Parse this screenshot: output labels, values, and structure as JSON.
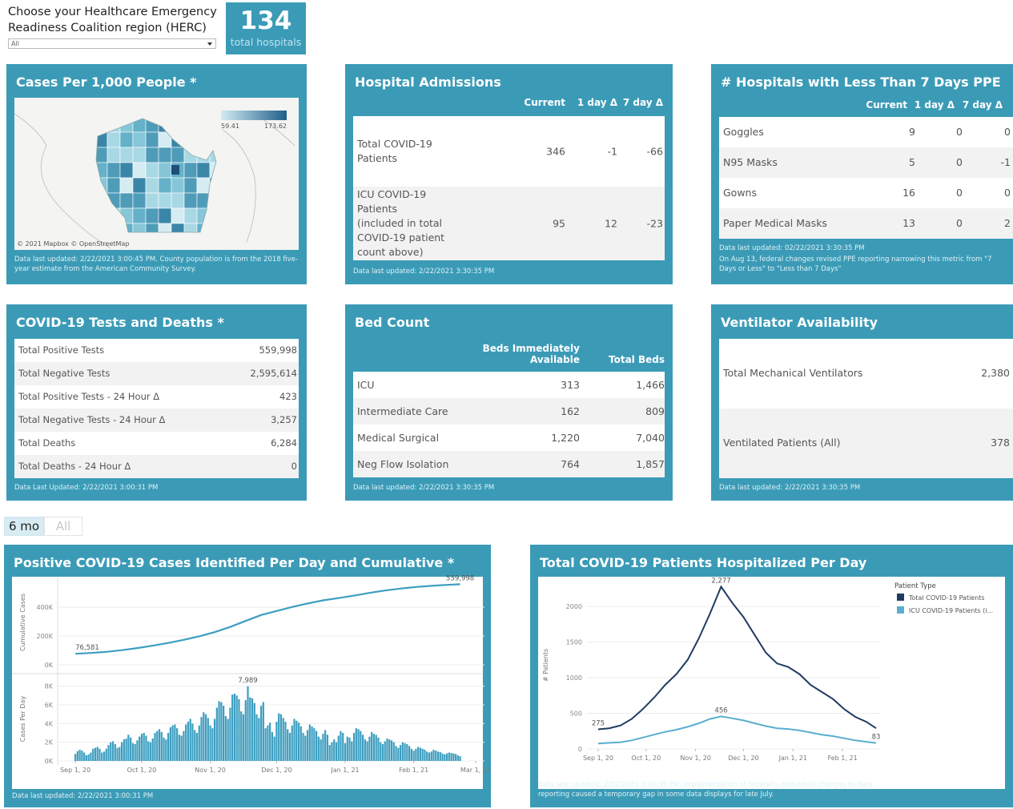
{
  "header": {
    "prompt": "Choose your Healthcare Emergency Readiness Coalition region (HERC)",
    "dropdown": "All",
    "hospital_count": "134",
    "hospital_count_label": "total hospitals"
  },
  "cases_map": {
    "title": "Cases Per 1,000 People *",
    "legend_min": "59.41",
    "legend_max": "173.62",
    "attribution": "© 2021 Mapbox © OpenStreetMap",
    "footnote": "Data last updated: 2/22/2021 3:00:45 PM. County population is from the 2018 five-year estimate from the American Community Survey."
  },
  "admissions": {
    "title": "Hospital Admissions",
    "columns": [
      "Current",
      "1 day Δ",
      "7 day Δ"
    ],
    "rows": [
      {
        "label": "Total COVID-19 Patients",
        "values": [
          "346",
          "-1",
          "-66"
        ]
      },
      {
        "label": "ICU COVID-19 Patients (included in total COVID-19 patient count above)",
        "values": [
          "95",
          "12",
          "-23"
        ]
      }
    ],
    "footnote": "Data last updated: 2/22/2021 3:30:35 PM"
  },
  "ppe": {
    "title": "# Hospitals with Less Than 7 Days PPE",
    "columns": [
      "Current",
      "1 day Δ",
      "7 day Δ"
    ],
    "rows": [
      {
        "label": "Goggles",
        "values": [
          "9",
          "0",
          "0"
        ]
      },
      {
        "label": "N95 Masks",
        "values": [
          "5",
          "0",
          "-1"
        ]
      },
      {
        "label": "Gowns",
        "values": [
          "16",
          "0",
          "0"
        ]
      },
      {
        "label": "Paper Medical Masks",
        "values": [
          "13",
          "0",
          "2"
        ]
      }
    ],
    "footnote": "Data last updated: 02/22/2021 3:30:35 PM",
    "note": "On Aug 13, federal changes revised PPE reporting narrowing this metric from \"7 Days or Less\" to \"Less than 7 Days\""
  },
  "tests": {
    "title": "COVID-19 Tests and Deaths *",
    "rows": [
      {
        "label": "Total Positive Tests",
        "value": "559,998"
      },
      {
        "label": "Total Negative Tests",
        "value": "2,595,614"
      },
      {
        "label": "Total Positive Tests - 24 Hour Δ",
        "value": "423"
      },
      {
        "label": "Total Negative Tests - 24 Hour Δ",
        "value": "3,257"
      },
      {
        "label": "Total Deaths",
        "value": "6,284"
      },
      {
        "label": "Total Deaths - 24 Hour Δ",
        "value": "0"
      }
    ],
    "footnote": "Data Last Updated: 2/22/2021 3:00:31 PM"
  },
  "beds": {
    "title": "Bed Count",
    "columns": [
      "Beds Immediately Available",
      "Total Beds"
    ],
    "rows": [
      {
        "label": "ICU",
        "values": [
          "313",
          "1,466"
        ]
      },
      {
        "label": "Intermediate Care",
        "values": [
          "162",
          "809"
        ]
      },
      {
        "label": "Medical Surgical",
        "values": [
          "1,220",
          "7,040"
        ]
      },
      {
        "label": "Neg Flow Isolation",
        "values": [
          "764",
          "1,857"
        ]
      }
    ],
    "footnote": "Data last updated: 2/22/2021 3:30:35 PM"
  },
  "ventilators": {
    "title": "Ventilator Availability",
    "rows": [
      {
        "label": "Total Mechanical Ventilators",
        "value": "2,380"
      },
      {
        "label": "Ventilated Patients (All)",
        "value": "378"
      }
    ],
    "footnote": "Data last updated: 2/22/2021 3:30:35 PM"
  },
  "range_buttons": [
    "6 mo",
    "All"
  ],
  "chart_data": [
    {
      "type": "line",
      "title": "Positive COVID-19 Cases Identified Per Day and Cumulative *",
      "ylabel": "Cumulative Cases",
      "color": "#3d9ec0",
      "x": [
        "2020-09-01",
        "2020-09-08",
        "2020-09-15",
        "2020-09-22",
        "2020-09-29",
        "2020-10-06",
        "2020-10-13",
        "2020-10-20",
        "2020-10-27",
        "2020-11-03",
        "2020-11-10",
        "2020-11-17",
        "2020-11-24",
        "2020-12-01",
        "2020-12-08",
        "2020-12-15",
        "2020-12-22",
        "2020-12-29",
        "2021-01-05",
        "2021-01-12",
        "2021-01-19",
        "2021-01-26",
        "2021-02-02",
        "2021-02-09",
        "2021-02-16",
        "2021-02-22"
      ],
      "values": [
        76581,
        82600,
        90400,
        101600,
        116400,
        133000,
        151700,
        173800,
        198400,
        227300,
        263300,
        304800,
        346200,
        374000,
        401900,
        426600,
        447800,
        463900,
        480900,
        500100,
        516800,
        530000,
        540800,
        548900,
        555300,
        559998
      ],
      "xlim": [
        "2020-08-24",
        "2021-03-05"
      ],
      "ylim": [
        0,
        590000
      ],
      "yticks": [
        {
          "value": 0,
          "label": "0K"
        },
        {
          "value": 200000,
          "label": "200K"
        },
        {
          "value": 400000,
          "label": "400K"
        }
      ],
      "annotations": [
        {
          "x": "2020-09-01",
          "y": 76581,
          "label": "76,581"
        },
        {
          "x": "2021-02-22",
          "y": 559998,
          "label": "559,998"
        }
      ]
    },
    {
      "type": "bar",
      "ylabel": "Cases Per Day",
      "color": "#3d9ec0",
      "x": [
        "2020-09-01",
        "2020-09-02",
        "2020-09-03",
        "2020-09-04",
        "2020-09-05",
        "2020-09-06",
        "2020-09-07",
        "2020-09-08",
        "2020-09-09",
        "2020-09-10",
        "2020-09-11",
        "2020-09-12",
        "2020-09-13",
        "2020-09-14",
        "2020-09-15",
        "2020-09-16",
        "2020-09-17",
        "2020-09-18",
        "2020-09-19",
        "2020-09-20",
        "2020-09-21",
        "2020-09-22",
        "2020-09-23",
        "2020-09-24",
        "2020-09-25",
        "2020-09-26",
        "2020-09-27",
        "2020-09-28",
        "2020-09-29",
        "2020-09-30",
        "2020-10-01",
        "2020-10-02",
        "2020-10-03",
        "2020-10-04",
        "2020-10-05",
        "2020-10-06",
        "2020-10-07",
        "2020-10-08",
        "2020-10-09",
        "2020-10-10",
        "2020-10-11",
        "2020-10-12",
        "2020-10-13",
        "2020-10-14",
        "2020-10-15",
        "2020-10-16",
        "2020-10-17",
        "2020-10-18",
        "2020-10-19",
        "2020-10-20",
        "2020-10-21",
        "2020-10-22",
        "2020-10-23",
        "2020-10-24",
        "2020-10-25",
        "2020-10-26",
        "2020-10-27",
        "2020-10-28",
        "2020-10-29",
        "2020-10-30",
        "2020-10-31",
        "2020-11-01",
        "2020-11-02",
        "2020-11-03",
        "2020-11-04",
        "2020-11-05",
        "2020-11-06",
        "2020-11-07",
        "2020-11-08",
        "2020-11-09",
        "2020-11-10",
        "2020-11-11",
        "2020-11-12",
        "2020-11-13",
        "2020-11-14",
        "2020-11-15",
        "2020-11-16",
        "2020-11-17",
        "2020-11-18",
        "2020-11-19",
        "2020-11-20",
        "2020-11-21",
        "2020-11-22",
        "2020-11-23",
        "2020-11-24",
        "2020-11-25",
        "2020-11-26",
        "2020-11-27",
        "2020-11-28",
        "2020-11-29",
        "2020-11-30",
        "2020-12-01",
        "2020-12-02",
        "2020-12-03",
        "2020-12-04",
        "2020-12-05",
        "2020-12-06",
        "2020-12-07",
        "2020-12-08",
        "2020-12-09",
        "2020-12-10",
        "2020-12-11",
        "2020-12-12",
        "2020-12-13",
        "2020-12-14",
        "2020-12-15",
        "2020-12-16",
        "2020-12-17",
        "2020-12-18",
        "2020-12-19",
        "2020-12-20",
        "2020-12-21",
        "2020-12-22",
        "2020-12-23",
        "2020-12-24",
        "2020-12-25",
        "2020-12-26",
        "2020-12-27",
        "2020-12-28",
        "2020-12-29",
        "2020-12-30",
        "2020-12-31",
        "2021-01-01",
        "2021-01-02",
        "2021-01-03",
        "2021-01-04",
        "2021-01-05",
        "2021-01-06",
        "2021-01-07",
        "2021-01-08",
        "2021-01-09",
        "2021-01-10",
        "2021-01-11",
        "2021-01-12",
        "2021-01-13",
        "2021-01-14",
        "2021-01-15",
        "2021-01-16",
        "2021-01-17",
        "2021-01-18",
        "2021-01-19",
        "2021-01-20",
        "2021-01-21",
        "2021-01-22",
        "2021-01-23",
        "2021-01-24",
        "2021-01-25",
        "2021-01-26",
        "2021-01-27",
        "2021-01-28",
        "2021-01-29",
        "2021-01-30",
        "2021-01-31",
        "2021-02-01",
        "2021-02-02",
        "2021-02-03",
        "2021-02-04",
        "2021-02-05",
        "2021-02-06",
        "2021-02-07",
        "2021-02-08",
        "2021-02-09",
        "2021-02-10",
        "2021-02-11",
        "2021-02-12",
        "2021-02-13",
        "2021-02-14",
        "2021-02-15",
        "2021-02-16",
        "2021-02-17",
        "2021-02-18",
        "2021-02-19",
        "2021-02-20",
        "2021-02-21",
        "2021-02-22"
      ],
      "values": [
        750,
        1050,
        1200,
        1100,
        900,
        600,
        700,
        900,
        1300,
        1400,
        1500,
        1300,
        900,
        1000,
        1300,
        1700,
        2000,
        2100,
        1800,
        1400,
        1500,
        2000,
        2300,
        2400,
        2800,
        2500,
        1900,
        1800,
        2200,
        2600,
        2900,
        3000,
        2700,
        2100,
        2000,
        2400,
        3000,
        3200,
        3400,
        3100,
        2500,
        2300,
        3000,
        3600,
        3800,
        3900,
        3500,
        2800,
        2700,
        3200,
        3900,
        4200,
        4500,
        4000,
        3300,
        3000,
        3800,
        4700,
        5200,
        5000,
        4600,
        3800,
        3500,
        4500,
        5700,
        6400,
        6300,
        5900,
        4800,
        4500,
        5700,
        7100,
        7200,
        7000,
        6600,
        5300,
        5000,
        6500,
        7989,
        6800,
        6700,
        6200,
        5000,
        4600,
        5900,
        6300,
        3500,
        3800,
        4100,
        3100,
        2600,
        4200,
        5100,
        5000,
        4600,
        4200,
        3400,
        3000,
        3800,
        4500,
        4300,
        4100,
        3700,
        3000,
        2700,
        3300,
        3900,
        3700,
        3500,
        3200,
        2600,
        2300,
        2900,
        3300,
        2800,
        1700,
        2000,
        2300,
        2000,
        2700,
        3200,
        3000,
        1900,
        2600,
        2500,
        2100,
        3000,
        3500,
        3400,
        3200,
        2800,
        2300,
        2100,
        2600,
        3100,
        2900,
        2800,
        2500,
        2000,
        1800,
        2100,
        2400,
        2300,
        2200,
        2000,
        1600,
        1400,
        1700,
        2000,
        1900,
        1800,
        1600,
        1300,
        1100,
        1300,
        1500,
        1400,
        1300,
        1200,
        1000,
        900,
        1000,
        1200,
        1100,
        1000,
        950,
        800,
        700,
        800,
        900,
        850,
        800,
        750,
        600,
        500
      ],
      "xlim": [
        "2020-08-24",
        "2021-03-05"
      ],
      "ylim": [
        0,
        9000
      ],
      "yticks": [
        {
          "value": 0,
          "label": "0K"
        },
        {
          "value": 2000,
          "label": "2K"
        },
        {
          "value": 4000,
          "label": "4K"
        },
        {
          "value": 6000,
          "label": "6K"
        },
        {
          "value": 8000,
          "label": "8K"
        }
      ],
      "xticks": [
        {
          "value": "2020-09-01",
          "label": "Sep 1, 20"
        },
        {
          "value": "2020-10-01",
          "label": "Oct 1, 20"
        },
        {
          "value": "2020-11-01",
          "label": "Nov 1, 20"
        },
        {
          "value": "2020-12-01",
          "label": "Dec 1, 20"
        },
        {
          "value": "2021-01-01",
          "label": "Jan 1, 21"
        },
        {
          "value": "2021-02-01",
          "label": "Feb 1, 21"
        },
        {
          "value": "2021-03-01",
          "label": "Mar 1, 21"
        }
      ],
      "annotations": [
        {
          "x": "2020-11-18",
          "y": 7989,
          "label": "7,989"
        }
      ],
      "footnote": "Data last updated: 2/22/2021 3:00:31 PM"
    },
    {
      "type": "line",
      "title": "Total COVID-19 Patients Hospitalized Per Day",
      "ylabel": "# Patients",
      "legend_title": "Patient Type",
      "x": [
        "2020-09-01",
        "2020-09-08",
        "2020-09-15",
        "2020-09-22",
        "2020-09-29",
        "2020-10-06",
        "2020-10-13",
        "2020-10-20",
        "2020-10-27",
        "2020-11-03",
        "2020-11-10",
        "2020-11-17",
        "2020-11-24",
        "2020-12-01",
        "2020-12-08",
        "2020-12-15",
        "2020-12-22",
        "2020-12-29",
        "2021-01-05",
        "2021-01-12",
        "2021-01-19",
        "2021-01-26",
        "2021-02-02",
        "2021-02-09",
        "2021-02-16",
        "2021-02-22"
      ],
      "series": [
        {
          "name": "Total COVID-19 Patients",
          "color": "#1f3b63",
          "values": [
            275,
            290,
            330,
            420,
            560,
            720,
            900,
            1050,
            1250,
            1550,
            1900,
            2277,
            2050,
            1850,
            1600,
            1350,
            1200,
            1150,
            1050,
            900,
            800,
            700,
            560,
            450,
            380,
            290
          ]
        },
        {
          "name": "ICU COVID-19 Patients (i...",
          "color": "#5aaecf",
          "values": [
            75,
            85,
            95,
            120,
            160,
            200,
            240,
            270,
            310,
            360,
            420,
            456,
            430,
            400,
            360,
            320,
            290,
            280,
            260,
            230,
            200,
            180,
            150,
            120,
            100,
            83
          ]
        }
      ],
      "xlim": [
        "2020-08-25",
        "2021-02-25"
      ],
      "ylim": [
        0,
        2350
      ],
      "yticks": [
        0,
        500,
        1000,
        1500,
        2000
      ],
      "xticks": [
        {
          "value": "2020-09-01",
          "label": "Sep 1, 20"
        },
        {
          "value": "2020-10-01",
          "label": "Oct 1, 20"
        },
        {
          "value": "2020-11-01",
          "label": "Nov 1, 20"
        },
        {
          "value": "2020-12-01",
          "label": "Dec 1, 20"
        },
        {
          "value": "2021-01-01",
          "label": "Jan 1, 21"
        },
        {
          "value": "2021-02-01",
          "label": "Feb 1, 21"
        }
      ],
      "annotations": [
        {
          "x": "2020-11-17",
          "y": 2277,
          "label": "2,277"
        },
        {
          "x": "2020-11-17",
          "y": 456,
          "label": "456"
        },
        {
          "x": "2020-09-01",
          "y": 275,
          "label": "275"
        },
        {
          "x": "2021-02-22",
          "y": 83,
          "label": "83"
        }
      ],
      "footnote": "Data last updated: 2/22/2021 3:30:35 PM. Implementation of federally-mandated changes to data reporting caused a temporary gap in some data displays for late July."
    }
  ]
}
